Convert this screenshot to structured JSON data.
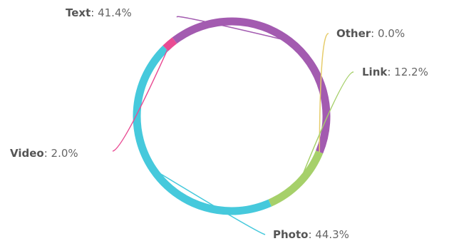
{
  "chart_data": {
    "type": "pie",
    "variant": "donut-ring",
    "slices": [
      {
        "name": "Text",
        "value": 41.4,
        "label": "41.4%",
        "color": "#a35bb0"
      },
      {
        "name": "Other",
        "value": 0.0,
        "label": "0.0%",
        "color": "#e6cc6a"
      },
      {
        "name": "Link",
        "value": 12.2,
        "label": "12.2%",
        "color": "#a6d06a"
      },
      {
        "name": "Photo",
        "value": 44.3,
        "label": "44.3%",
        "color": "#46c9dc"
      },
      {
        "name": "Video",
        "value": 2.0,
        "label": "2.0%",
        "color": "#e94b93"
      }
    ],
    "legend": "none",
    "data_labels": "outside-with-leader-lines"
  }
}
